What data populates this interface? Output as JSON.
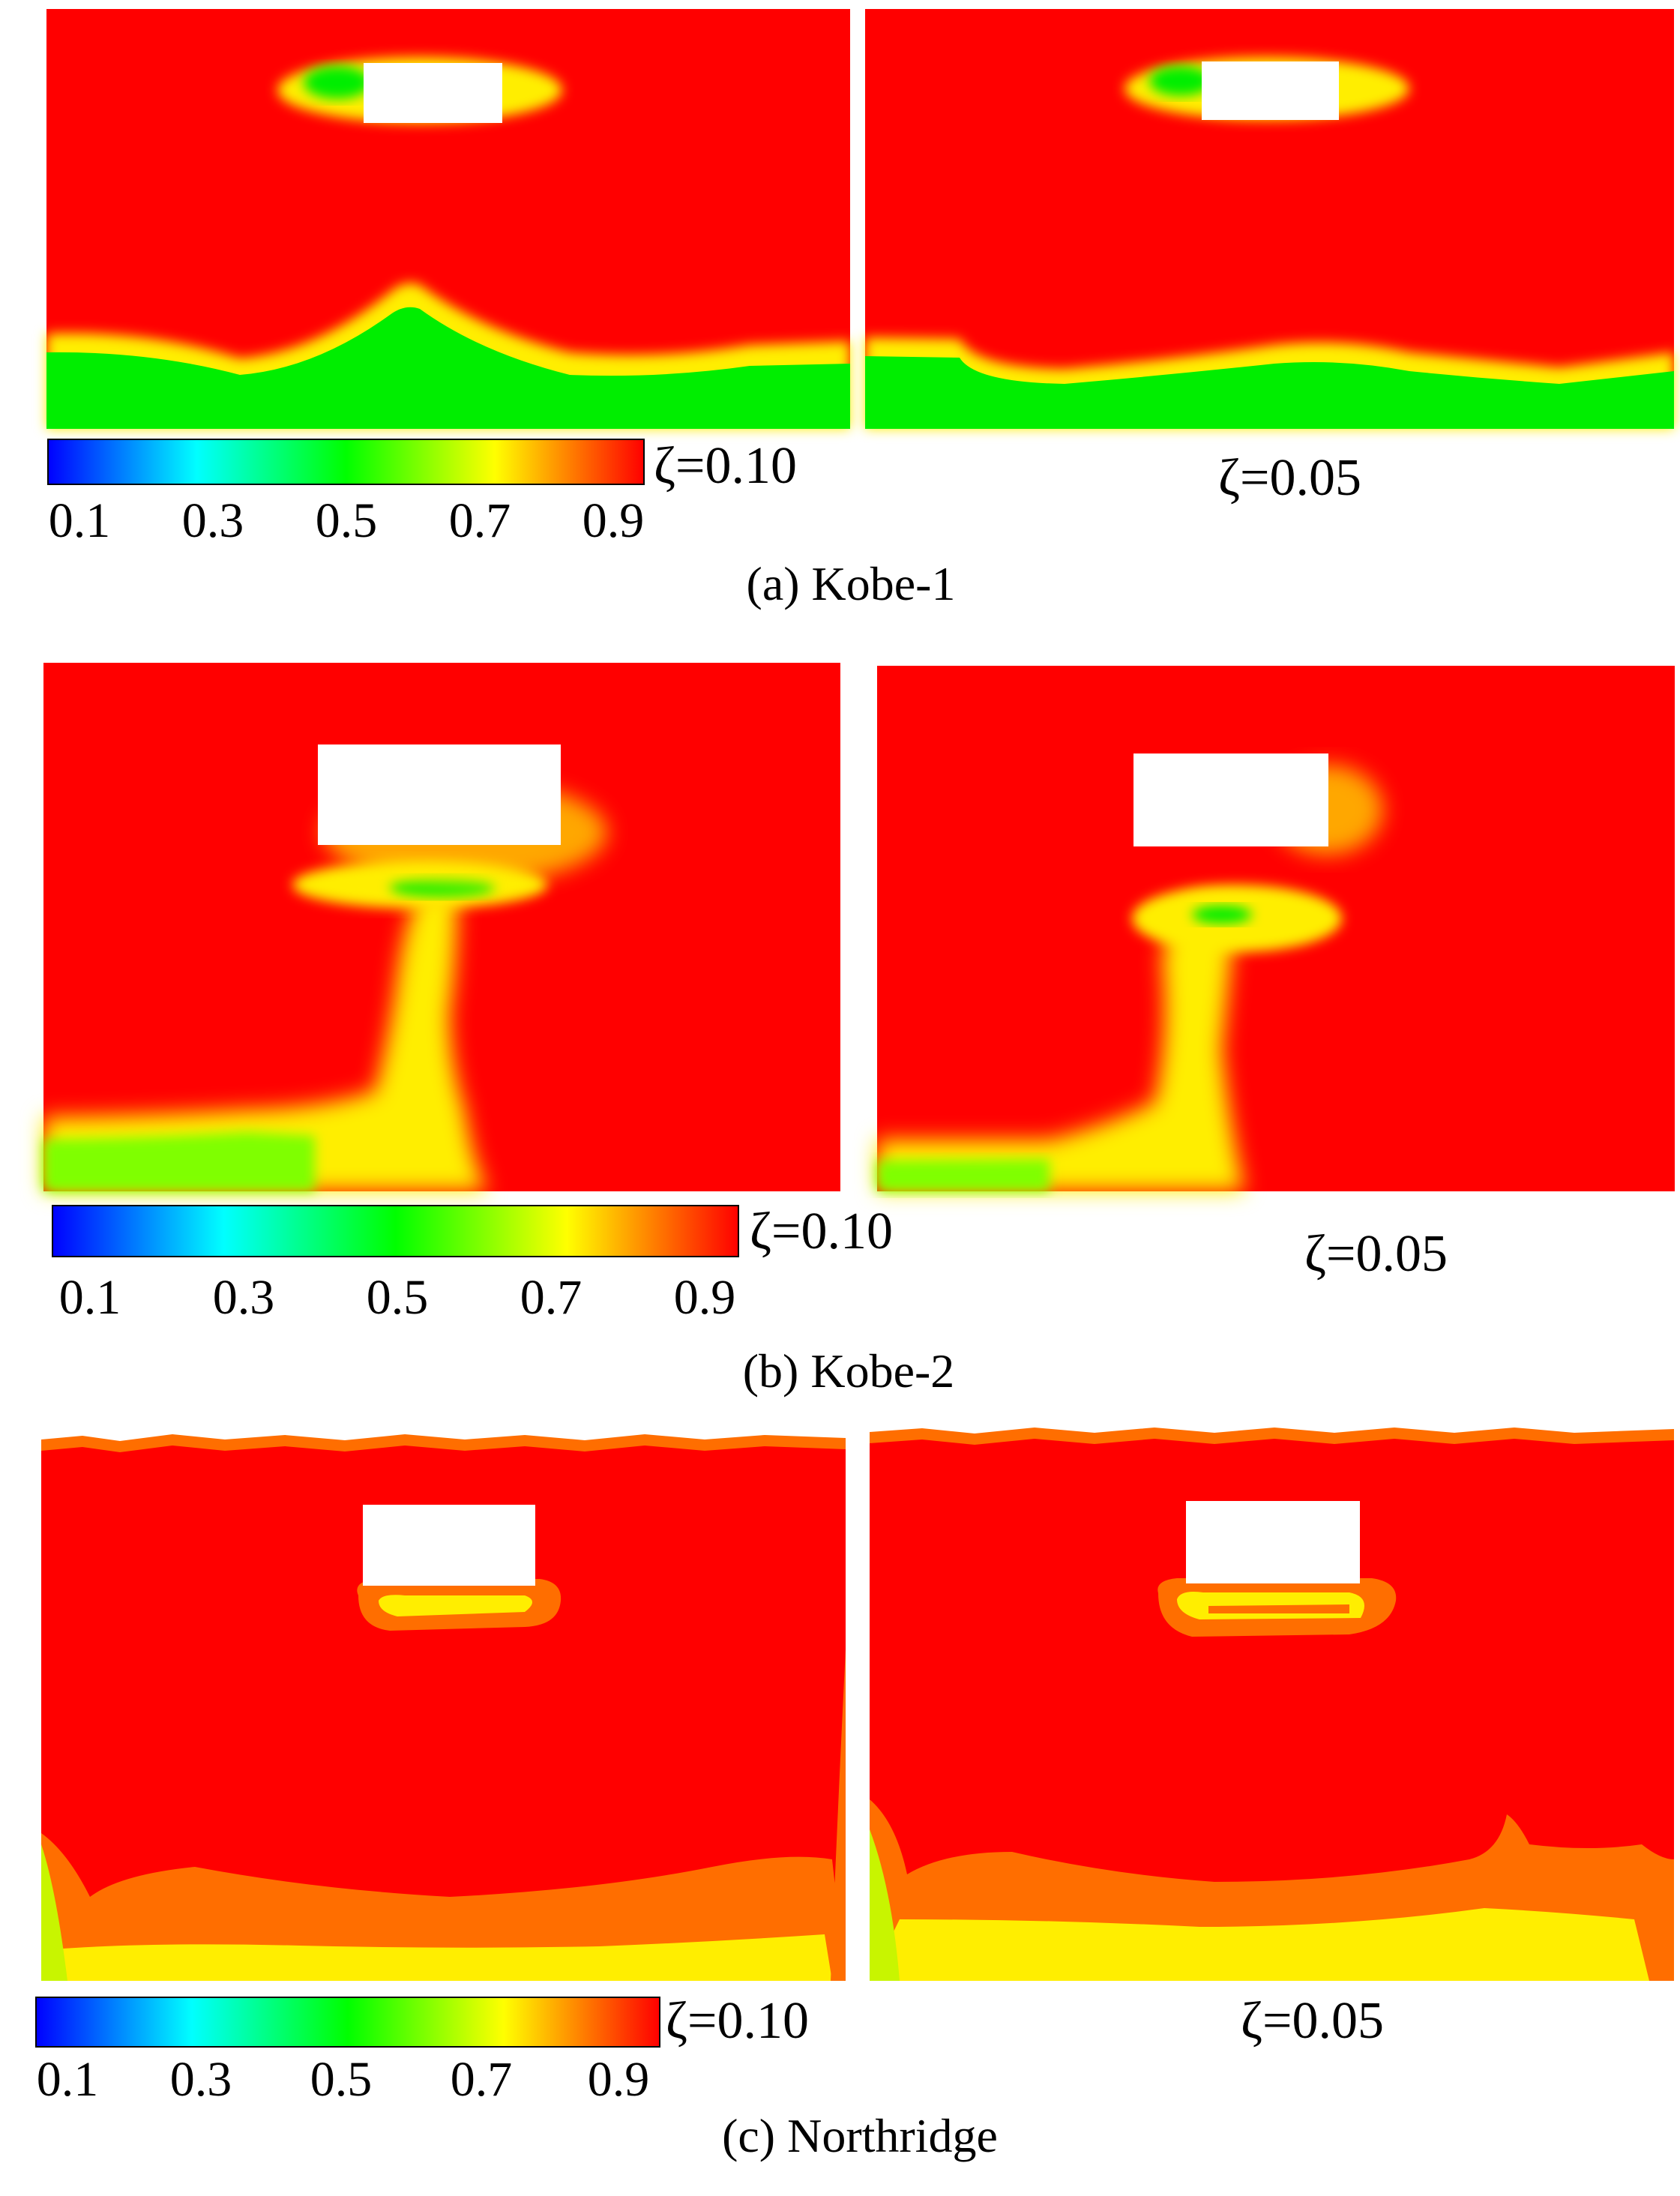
{
  "colors": {
    "red": "#ff0000",
    "orange": "#ff6e00",
    "yellow": "#ffee00",
    "green": "#00ee00",
    "white": "#ffffff"
  },
  "colorbar": {
    "ticks": [
      "0.1",
      "0.3",
      "0.5",
      "0.7",
      "0.9"
    ],
    "stops": [
      "#0000ff",
      "#00ffff",
      "#00ff00",
      "#ffff00",
      "#ff0000"
    ]
  },
  "panels": [
    {
      "caption": "(a) Kobe-1",
      "left_label": "ζ=0.10",
      "right_label": "ζ=0.05"
    },
    {
      "caption": "(b) Kobe-2",
      "left_label": "ζ=0.10",
      "right_label": "ζ=0.05"
    },
    {
      "caption": "(c) Northridge",
      "left_label": "ζ=0.10",
      "right_label": "ζ=0.05"
    }
  ]
}
